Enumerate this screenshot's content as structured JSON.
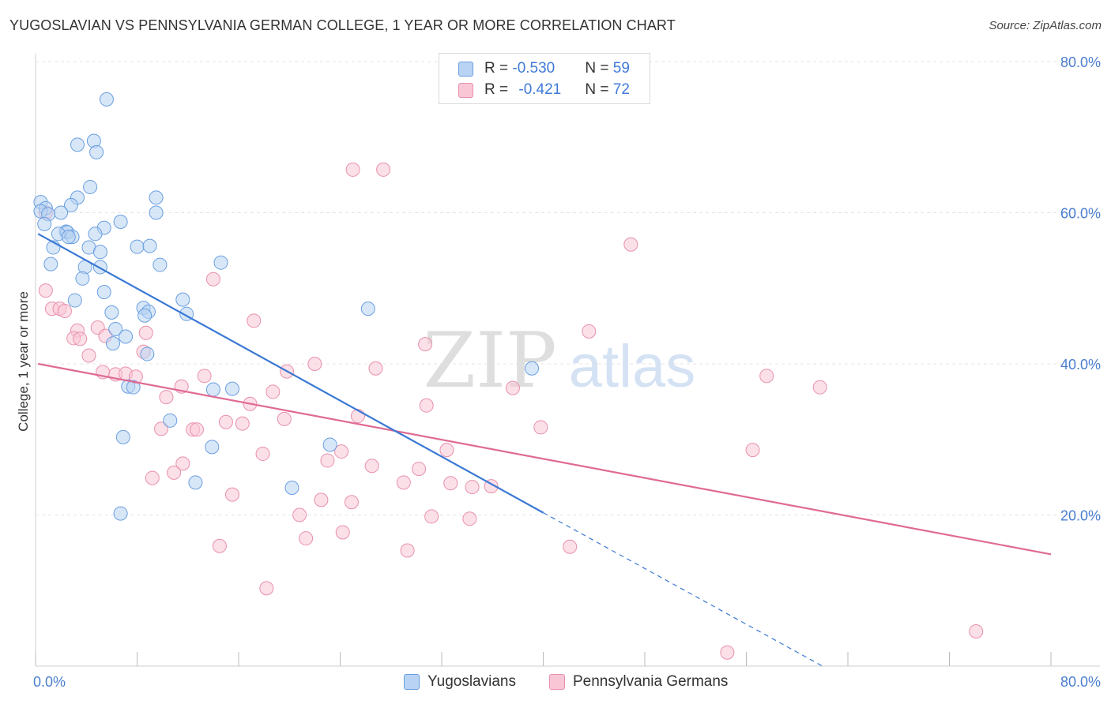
{
  "title": "YUGOSLAVIAN VS PENNSYLVANIA GERMAN COLLEGE, 1 YEAR OR MORE CORRELATION CHART",
  "source": "Source: ZipAtlas.com",
  "watermark": {
    "zip": "ZIP",
    "atlas": "atlas"
  },
  "legend": {
    "rows": [
      {
        "r_label": "R = ",
        "r_value": "-0.530",
        "n_label": "N = ",
        "n_value": "59",
        "fill": "#b8d3f3",
        "stroke": "#6a9fe0"
      },
      {
        "r_label": "R = ",
        "r_value": "-0.421",
        "n_label": "N = ",
        "n_value": "72",
        "fill": "#f9c6d5",
        "stroke": "#e890ad"
      }
    ]
  },
  "bottom_legend": [
    {
      "label": "Yugoslavians",
      "fill": "#b8d3f3",
      "stroke": "#6a9fe0"
    },
    {
      "label": "Pennsylvania Germans",
      "fill": "#f9c6d5",
      "stroke": "#e890ad"
    }
  ],
  "chart_data": {
    "type": "scatter",
    "title": "YUGOSLAVIAN VS PENNSYLVANIA GERMAN COLLEGE, 1 YEAR OR MORE CORRELATION CHART",
    "xlabel": "",
    "ylabel": "College, 1 year or more",
    "xlim": [
      0,
      80
    ],
    "ylim": [
      0,
      80
    ],
    "x_tick_labels": [
      {
        "value": 0,
        "label": "0.0%"
      },
      {
        "value": 80,
        "label": "80.0%"
      }
    ],
    "y_tick_labels": [
      {
        "value": 20,
        "label": "20.0%"
      },
      {
        "value": 40,
        "label": "40.0%"
      },
      {
        "value": 60,
        "label": "60.0%"
      },
      {
        "value": 80,
        "label": "80.0%"
      }
    ],
    "x_minor_ticks": [
      0,
      8,
      16,
      24,
      32,
      40,
      48,
      56,
      64,
      72,
      80
    ],
    "colors": {
      "series1_fill": "#b8d3f3",
      "series1_stroke": "#6a9fe0",
      "series1_line": "#3a78d4",
      "series2_fill": "#f9c6d5",
      "series2_stroke": "#e890ad",
      "series2_line": "#e06a94",
      "grid": "#e4e4e4",
      "tick_label": "#4a7fd0"
    },
    "series": [
      {
        "name": "Yugoslavians",
        "R": -0.53,
        "N": 59,
        "trend": {
          "x1": 0.2,
          "y1": 57.2,
          "x2": 40.0,
          "y2": 20.3,
          "dash_x2": 62.0,
          "dash_y2": 0.0
        },
        "points": [
          [
            5.6,
            75.0
          ],
          [
            4.6,
            69.5
          ],
          [
            3.3,
            69.0
          ],
          [
            4.8,
            68.0
          ],
          [
            4.3,
            63.4
          ],
          [
            3.3,
            62.0
          ],
          [
            9.5,
            62.0
          ],
          [
            0.4,
            61.4
          ],
          [
            2.8,
            61.0
          ],
          [
            0.8,
            60.6
          ],
          [
            0.4,
            60.2
          ],
          [
            1.0,
            59.8
          ],
          [
            2.0,
            60.0
          ],
          [
            9.5,
            60.0
          ],
          [
            6.7,
            58.8
          ],
          [
            0.7,
            58.5
          ],
          [
            5.4,
            58.0
          ],
          [
            2.4,
            57.5
          ],
          [
            2.5,
            57.4
          ],
          [
            1.8,
            57.2
          ],
          [
            4.7,
            57.2
          ],
          [
            2.9,
            56.8
          ],
          [
            2.6,
            56.8
          ],
          [
            1.4,
            55.4
          ],
          [
            4.2,
            55.4
          ],
          [
            8.0,
            55.5
          ],
          [
            9.0,
            55.6
          ],
          [
            5.1,
            54.8
          ],
          [
            14.6,
            53.4
          ],
          [
            1.2,
            53.2
          ],
          [
            3.9,
            52.8
          ],
          [
            5.1,
            52.8
          ],
          [
            9.8,
            53.1
          ],
          [
            3.7,
            51.3
          ],
          [
            5.4,
            49.5
          ],
          [
            3.1,
            48.4
          ],
          [
            11.6,
            48.5
          ],
          [
            8.5,
            47.4
          ],
          [
            26.2,
            47.3
          ],
          [
            6.0,
            46.8
          ],
          [
            8.9,
            46.9
          ],
          [
            8.6,
            46.4
          ],
          [
            11.9,
            46.6
          ],
          [
            6.3,
            44.6
          ],
          [
            7.1,
            43.6
          ],
          [
            6.1,
            42.7
          ],
          [
            8.8,
            41.3
          ],
          [
            39.1,
            39.4
          ],
          [
            7.3,
            37.0
          ],
          [
            7.7,
            36.9
          ],
          [
            14.0,
            36.6
          ],
          [
            15.5,
            36.7
          ],
          [
            10.6,
            32.5
          ],
          [
            6.9,
            30.3
          ],
          [
            13.9,
            29.0
          ],
          [
            23.2,
            29.3
          ],
          [
            12.6,
            24.3
          ],
          [
            20.2,
            23.6
          ],
          [
            6.7,
            20.2
          ]
        ]
      },
      {
        "name": "Pennsylvania Germans",
        "R": -0.421,
        "N": 72,
        "trend": {
          "x1": 0.2,
          "y1": 40.0,
          "x2": 80.0,
          "y2": 14.8
        },
        "points": [
          [
            27.4,
            65.7
          ],
          [
            0.8,
            60.0
          ],
          [
            46.9,
            55.8
          ],
          [
            14.0,
            51.2
          ],
          [
            0.8,
            49.7
          ],
          [
            1.3,
            47.3
          ],
          [
            1.9,
            47.3
          ],
          [
            2.3,
            47.0
          ],
          [
            17.2,
            45.7
          ],
          [
            3.3,
            44.4
          ],
          [
            4.9,
            44.8
          ],
          [
            43.6,
            44.3
          ],
          [
            8.7,
            44.1
          ],
          [
            3.0,
            43.4
          ],
          [
            3.5,
            43.3
          ],
          [
            5.5,
            43.7
          ],
          [
            30.7,
            42.6
          ],
          [
            8.5,
            41.6
          ],
          [
            4.2,
            41.1
          ],
          [
            22.0,
            40.0
          ],
          [
            26.8,
            39.4
          ],
          [
            5.3,
            38.9
          ],
          [
            19.8,
            39.0
          ],
          [
            6.3,
            38.6
          ],
          [
            7.1,
            38.7
          ],
          [
            13.3,
            38.4
          ],
          [
            57.6,
            38.4
          ],
          [
            7.9,
            38.3
          ],
          [
            11.5,
            37.0
          ],
          [
            37.6,
            36.8
          ],
          [
            61.8,
            36.9
          ],
          [
            18.7,
            36.3
          ],
          [
            10.3,
            35.6
          ],
          [
            16.9,
            34.7
          ],
          [
            30.8,
            34.5
          ],
          [
            25.4,
            33.1
          ],
          [
            19.6,
            32.7
          ],
          [
            15.0,
            32.3
          ],
          [
            16.3,
            32.1
          ],
          [
            39.8,
            31.6
          ],
          [
            9.9,
            31.4
          ],
          [
            12.4,
            31.3
          ],
          [
            12.7,
            31.3
          ],
          [
            32.4,
            28.6
          ],
          [
            56.5,
            28.6
          ],
          [
            24.1,
            28.4
          ],
          [
            17.9,
            28.1
          ],
          [
            23.0,
            27.2
          ],
          [
            11.6,
            26.8
          ],
          [
            26.5,
            26.5
          ],
          [
            30.2,
            26.1
          ],
          [
            10.9,
            25.6
          ],
          [
            9.2,
            24.9
          ],
          [
            29.0,
            24.3
          ],
          [
            32.7,
            24.2
          ],
          [
            34.4,
            23.7
          ],
          [
            35.9,
            23.8
          ],
          [
            15.5,
            22.7
          ],
          [
            22.5,
            22.0
          ],
          [
            24.9,
            21.7
          ],
          [
            20.8,
            20.0
          ],
          [
            31.2,
            19.8
          ],
          [
            34.2,
            19.5
          ],
          [
            24.2,
            17.7
          ],
          [
            21.3,
            16.9
          ],
          [
            14.5,
            15.9
          ],
          [
            42.1,
            15.8
          ],
          [
            29.3,
            15.3
          ],
          [
            18.2,
            10.3
          ],
          [
            74.1,
            4.6
          ],
          [
            54.5,
            1.8
          ],
          [
            25.0,
            65.7
          ]
        ]
      }
    ]
  }
}
